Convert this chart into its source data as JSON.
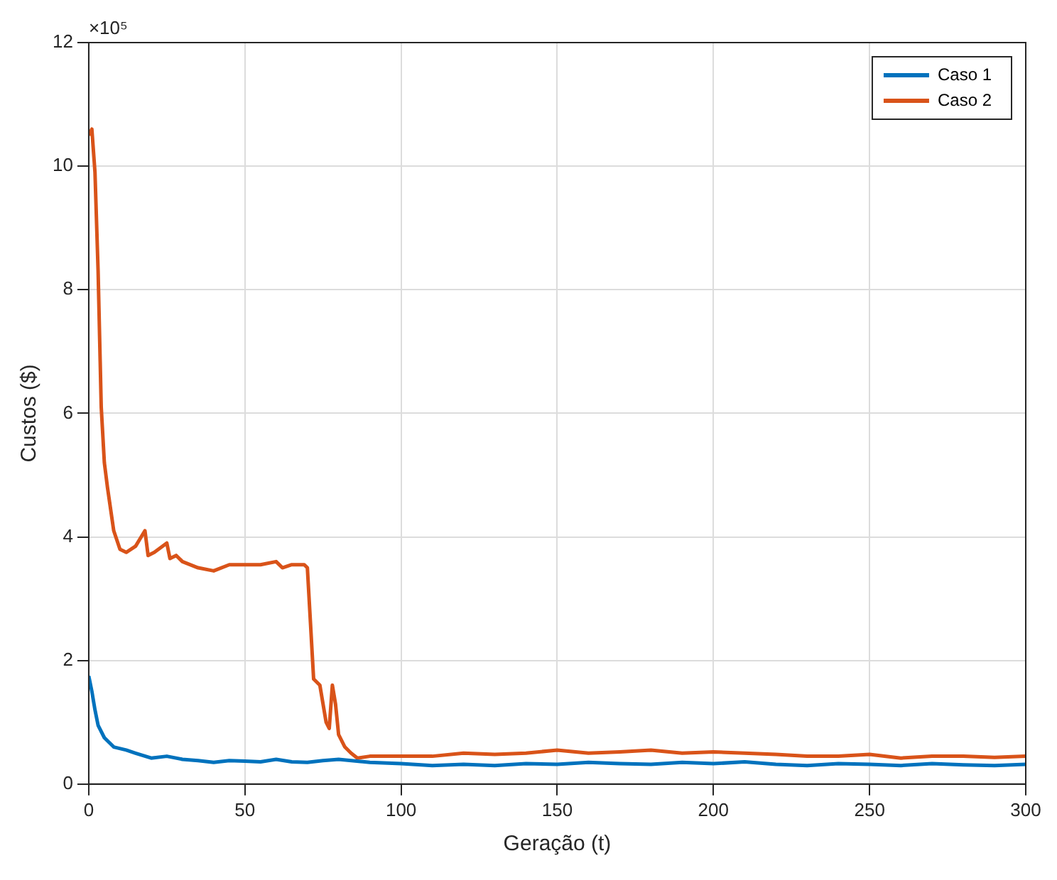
{
  "chart_data": {
    "type": "line",
    "xlabel": "Geração (t)",
    "ylabel": "Custos ($)",
    "annotations": [
      "×10⁵"
    ],
    "xlim": [
      0,
      300
    ],
    "xticks": [
      0,
      50,
      100,
      150,
      200,
      250,
      300
    ],
    "ylim": [
      0,
      12
    ],
    "yticks": [
      0,
      2,
      4,
      6,
      8,
      10,
      12
    ],
    "grid": true,
    "legend": "top right",
    "marker": "none",
    "line_style": "solid",
    "series": [
      {
        "name": "Caso 1",
        "color": "#0072bd",
        "x": [
          0,
          1,
          2,
          3,
          5,
          8,
          12,
          15,
          20,
          25,
          30,
          35,
          40,
          45,
          50,
          55,
          60,
          65,
          70,
          75,
          80,
          90,
          100,
          110,
          120,
          130,
          140,
          150,
          160,
          170,
          180,
          190,
          200,
          210,
          220,
          230,
          240,
          250,
          260,
          270,
          280,
          290,
          300
        ],
        "values": [
          1.75,
          1.5,
          1.2,
          0.95,
          0.75,
          0.6,
          0.55,
          0.5,
          0.42,
          0.45,
          0.4,
          0.38,
          0.35,
          0.38,
          0.37,
          0.36,
          0.4,
          0.36,
          0.35,
          0.38,
          0.4,
          0.35,
          0.33,
          0.3,
          0.32,
          0.3,
          0.33,
          0.32,
          0.35,
          0.33,
          0.32,
          0.35,
          0.33,
          0.36,
          0.32,
          0.3,
          0.33,
          0.32,
          0.3,
          0.33,
          0.31,
          0.3,
          0.32
        ]
      },
      {
        "name": "Caso 2",
        "color": "#d95319",
        "x": [
          0,
          1,
          2,
          3,
          4,
          5,
          6,
          8,
          10,
          12,
          15,
          18,
          19,
          21,
          25,
          26,
          28,
          30,
          35,
          40,
          45,
          50,
          55,
          60,
          62,
          65,
          69,
          70,
          71,
          72,
          74,
          76,
          77,
          78,
          79,
          80,
          82,
          84,
          86,
          90,
          100,
          110,
          120,
          130,
          140,
          150,
          160,
          170,
          180,
          190,
          200,
          210,
          220,
          230,
          240,
          250,
          260,
          270,
          280,
          290,
          300
        ],
        "values": [
          10.5,
          10.6,
          9.9,
          8.3,
          6.1,
          5.2,
          4.8,
          4.1,
          3.8,
          3.75,
          3.85,
          4.1,
          3.7,
          3.75,
          3.9,
          3.65,
          3.7,
          3.6,
          3.5,
          3.45,
          3.55,
          3.55,
          3.55,
          3.6,
          3.5,
          3.55,
          3.55,
          3.5,
          2.6,
          1.7,
          1.6,
          1.0,
          0.9,
          1.6,
          1.3,
          0.8,
          0.6,
          0.5,
          0.42,
          0.45,
          0.45,
          0.45,
          0.5,
          0.48,
          0.5,
          0.55,
          0.5,
          0.52,
          0.55,
          0.5,
          0.52,
          0.5,
          0.48,
          0.45,
          0.45,
          0.48,
          0.42,
          0.45,
          0.45,
          0.43,
          0.45
        ]
      }
    ]
  }
}
